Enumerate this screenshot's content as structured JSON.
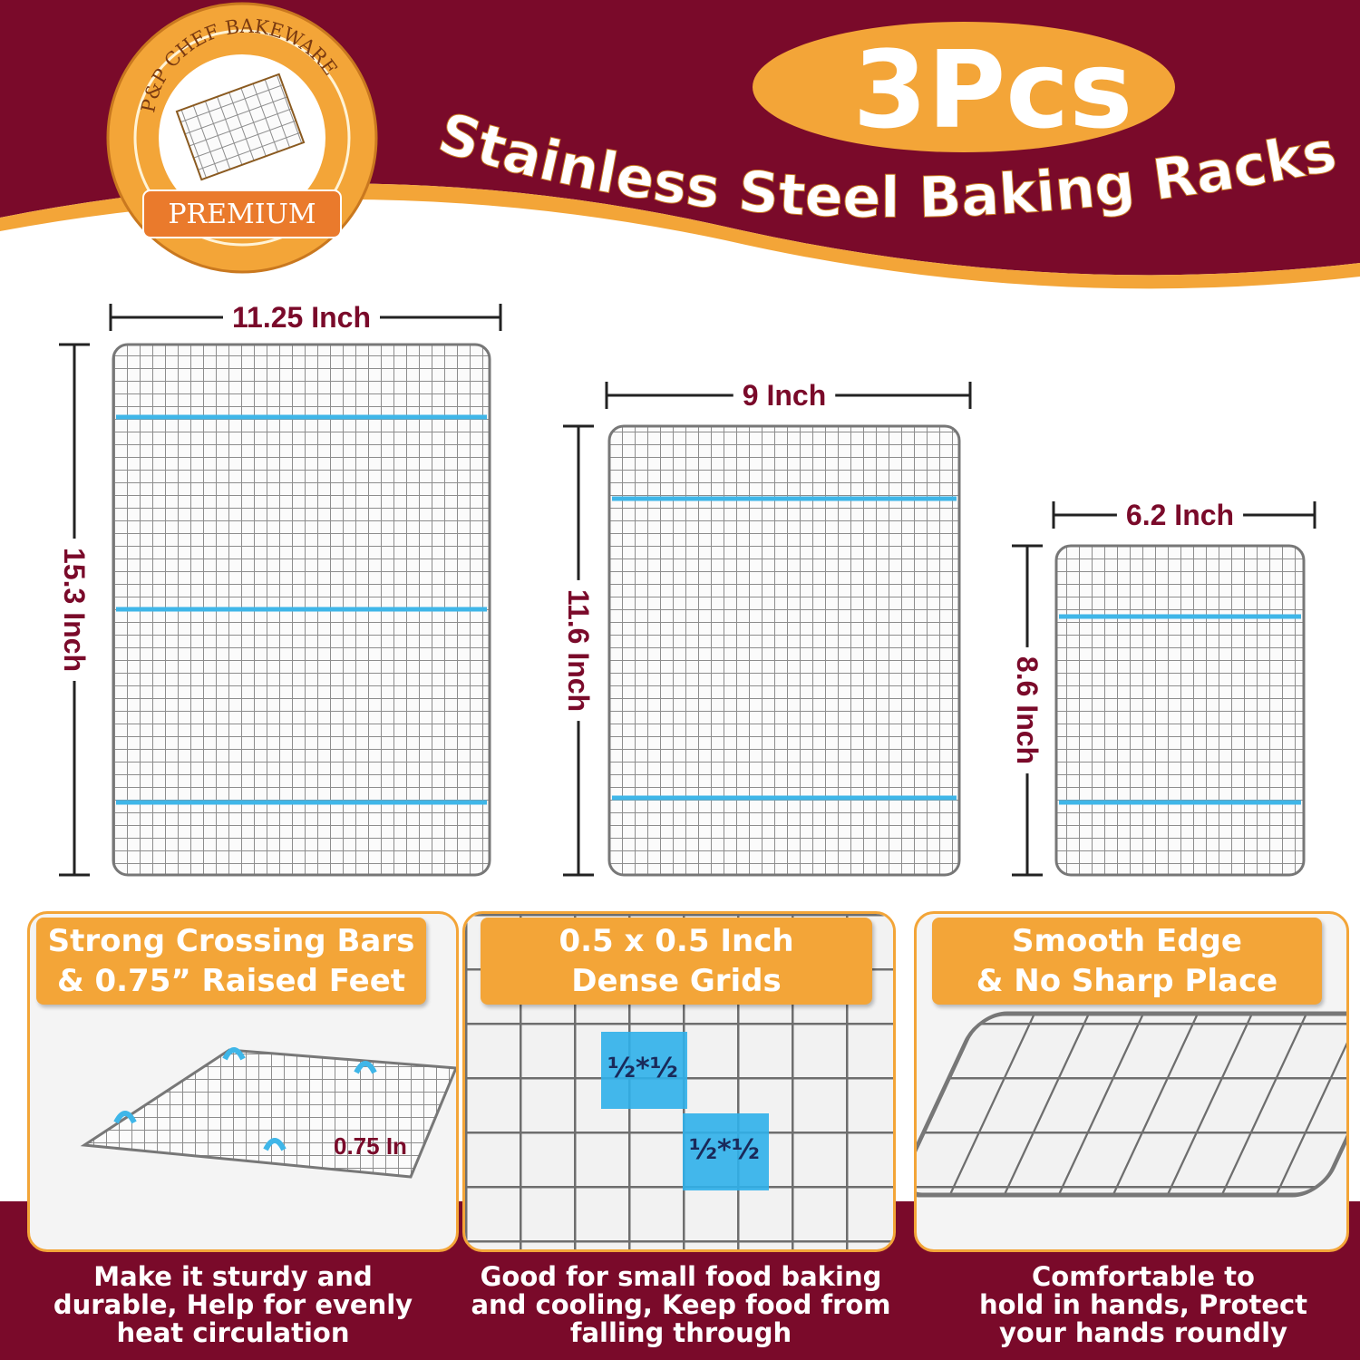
{
  "brand": {
    "logo_text": "P&P CHEF BAKEWARE",
    "badge": "PREMIUM"
  },
  "header": {
    "count": "3Pcs",
    "title": "Stainless Steel Baking Racks"
  },
  "colors": {
    "maroon": "#7a0a2a",
    "orange": "#f3a538",
    "feet_blue": "#3fb6e8"
  },
  "racks": [
    {
      "width": "11.25 Inch",
      "height": "15.3 Inch"
    },
    {
      "width": "9 Inch",
      "height": "11.6 Inch"
    },
    {
      "width": "6.2 Inch",
      "height": "8.6 Inch"
    }
  ],
  "features": [
    {
      "label_line1": "Strong Crossing Bars",
      "label_line2": "& 0.75”  Raised Feet",
      "annotation": "0.75 In",
      "caption": [
        "Make it sturdy and",
        "durable, Help for evenly",
        "heat circulation"
      ]
    },
    {
      "label_line1": "0.5 x 0.5 Inch",
      "label_line2": "Dense Grids",
      "annotation": "½*½",
      "caption": [
        "Good for small food baking",
        "and cooling, Keep food from",
        "falling through"
      ]
    },
    {
      "label_line1": "Smooth Edge",
      "label_line2": "& No Sharp Place",
      "caption": [
        "Comfortable to",
        "hold in hands, Protect",
        "your hands roundly"
      ]
    }
  ]
}
